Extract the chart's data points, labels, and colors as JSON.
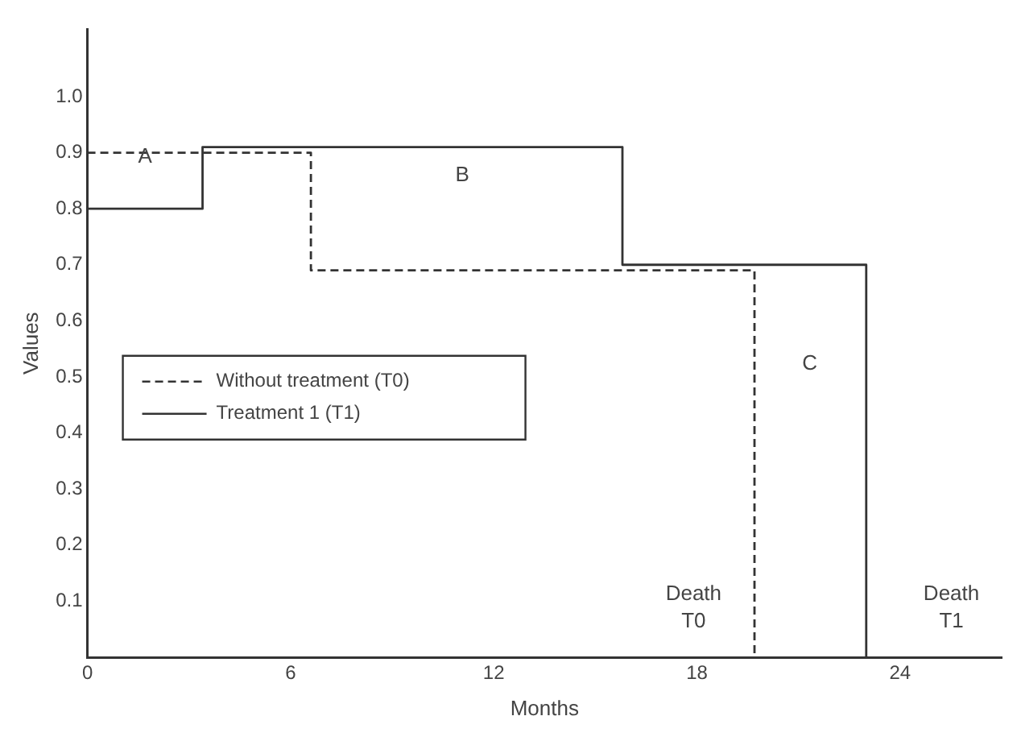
{
  "chart_data": {
    "type": "step",
    "xlabel": "Months",
    "ylabel": "Values",
    "xlim": [
      0,
      27
    ],
    "xticks": [
      0,
      6,
      12,
      18,
      24
    ],
    "ylim": [
      0,
      1.12
    ],
    "yticks": [
      {
        "value": 0.1,
        "label": "0.1"
      },
      {
        "value": 0.2,
        "label": "0.2"
      },
      {
        "value": 0.3,
        "label": "0.3"
      },
      {
        "value": 0.4,
        "label": "0.4"
      },
      {
        "value": 0.5,
        "label": "0.5"
      },
      {
        "value": 0.6,
        "label": "0.6"
      },
      {
        "value": 0.7,
        "label": "0.7"
      },
      {
        "value": 0.8,
        "label": "0.8"
      },
      {
        "value": 0.9,
        "label": "0.9"
      },
      {
        "value": 1,
        "label": "1.0"
      }
    ],
    "grid": false,
    "legend": "left",
    "marker": "none",
    "series": [
      {
        "name": "Without treatment (T0)",
        "color": "#333333",
        "line_style": "dashed",
        "x": [
          0,
          6.6,
          19.7
        ],
        "values": [
          0.9,
          0.69,
          0
        ]
      },
      {
        "name": "Treatment 1 (T1)",
        "color": "#333333",
        "line_style": "solid",
        "x": [
          0,
          3.4,
          15.8,
          23.0
        ],
        "values": [
          0.8,
          0.91,
          0.7,
          0
        ]
      }
    ],
    "annotations": [
      "A",
      "B",
      "C",
      "Death\nT0",
      "Death\nT1"
    ]
  }
}
